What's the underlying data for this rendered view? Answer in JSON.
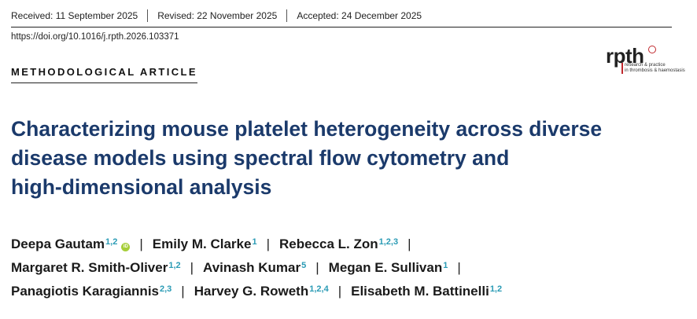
{
  "dates": {
    "received": "Received: 11 September 2025",
    "revised": "Revised: 22 November 2025",
    "accepted": "Accepted: 24 December 2025"
  },
  "doi": "https://doi.org/10.1016/j.rpth.2026.103371",
  "article_type": "METHODOLOGICAL ARTICLE",
  "journal_logo": {
    "wordmark": "rpth",
    "tagline_1": "research & practice",
    "tagline_2": "in thrombosis & haemostasis",
    "accent_color": "#c0282d"
  },
  "title_lines": [
    "Characterizing mouse platelet heterogeneity across diverse",
    "disease models using spectral flow cytometry and",
    "high-dimensional analysis"
  ],
  "title_color": "#1b3a6b",
  "affiliation_color": "#2a9bb5",
  "separator": "|",
  "authors": [
    {
      "name": "Deepa Gautam",
      "aff": "1,2",
      "orcid_icon": "orcid-icon"
    },
    {
      "name": "Emily M. Clarke",
      "aff": "1"
    },
    {
      "name": "Rebecca L. Zon",
      "aff": "1,2,3"
    },
    {
      "name": "Margaret R. Smith-Oliver",
      "aff": "1,2"
    },
    {
      "name": "Avinash Kumar",
      "aff": "5"
    },
    {
      "name": "Megan E. Sullivan",
      "aff": "1"
    },
    {
      "name": "Panagiotis Karagiannis",
      "aff": "2,3"
    },
    {
      "name": "Harvey G. Roweth",
      "aff": "1,2,4"
    },
    {
      "name": "Elisabeth M. Battinelli",
      "aff": "1,2"
    }
  ]
}
